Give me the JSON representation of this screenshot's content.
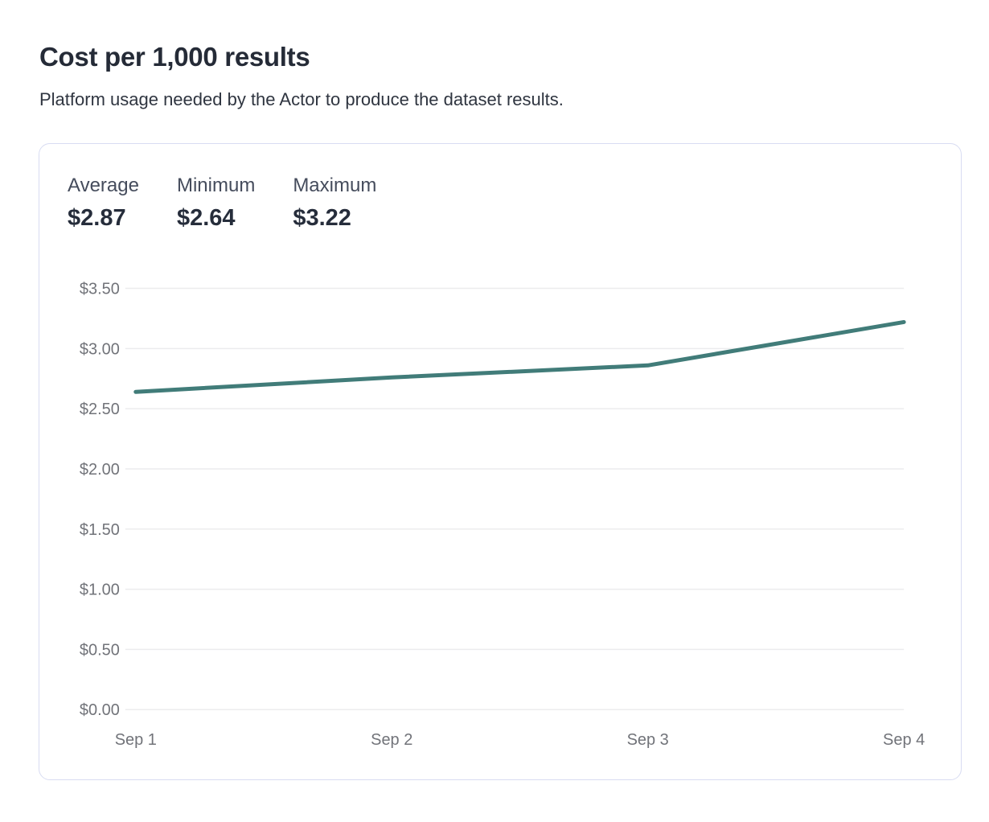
{
  "page": {
    "title": "Cost per 1,000 results",
    "subtitle": "Platform usage needed by the Actor to produce the dataset results."
  },
  "stats": [
    {
      "label": "Average",
      "value": "$2.87"
    },
    {
      "label": "Minimum",
      "value": "$2.64"
    },
    {
      "label": "Maximum",
      "value": "$3.22"
    }
  ],
  "chart_data": {
    "type": "line",
    "title": "Cost per 1,000 results",
    "x": [
      "Sep 1",
      "Sep 2",
      "Sep 3",
      "Sep 4"
    ],
    "series": [
      {
        "name": "Cost per 1,000 results",
        "values": [
          2.64,
          2.76,
          2.86,
          3.22
        ]
      }
    ],
    "summary": {
      "average": 2.87,
      "minimum": 2.64,
      "maximum": 3.22
    },
    "unit": "$",
    "ylim": [
      0,
      3.5
    ],
    "y_ticks": [
      {
        "label": "$3.50",
        "value": 3.5
      },
      {
        "label": "$3.00",
        "value": 3.0
      },
      {
        "label": "$2.50",
        "value": 2.5
      },
      {
        "label": "$2.00",
        "value": 2.0
      },
      {
        "label": "$1.50",
        "value": 1.5
      },
      {
        "label": "$1.00",
        "value": 1.0
      },
      {
        "label": "$0.50",
        "value": 0.5
      },
      {
        "label": "$0.00",
        "value": 0.0
      }
    ],
    "grid": true,
    "legend": "none",
    "line_color": "#417c79",
    "grid_color": "#ececee",
    "tick_label_color": "#717379"
  }
}
